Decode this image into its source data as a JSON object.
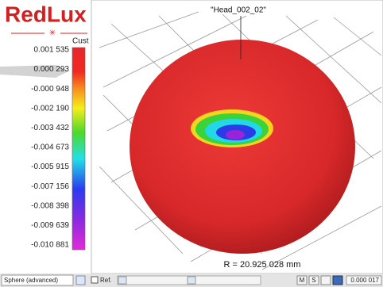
{
  "logo": "RedLux",
  "scale": {
    "unit_label": "Cust",
    "labels": [
      "0.001 535",
      "0.000 293",
      "-0.000 948",
      "-0.002 190",
      "-0.003 432",
      "-0.004 673",
      "-0.005 915",
      "-0.007 156",
      "-0.008 398",
      "-0.009 639",
      "-0.010 881"
    ]
  },
  "view": {
    "title": "\"Head_002_02\"",
    "radius_label": "R = 20.925 028 mm"
  },
  "toolbar": {
    "mode": "Sphere (advanced)",
    "ref": "Ref.",
    "buttons": [
      "M",
      "S"
    ],
    "value": "0.000 017"
  }
}
